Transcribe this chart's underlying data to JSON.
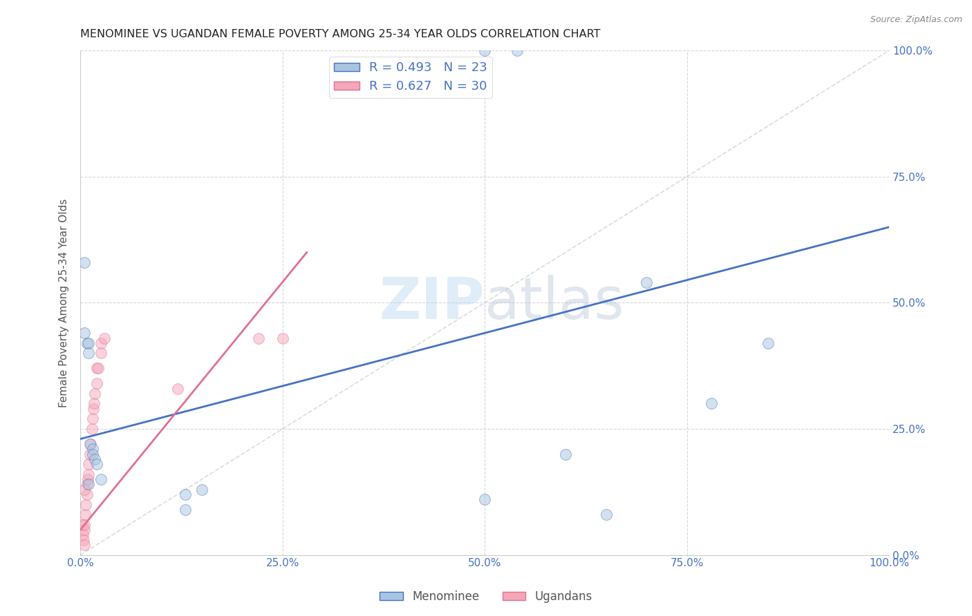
{
  "title": "MENOMINEE VS UGANDAN FEMALE POVERTY AMONG 25-34 YEAR OLDS CORRELATION CHART",
  "source": "Source: ZipAtlas.com",
  "ylabel": "Female Poverty Among 25-34 Year Olds",
  "xlim": [
    0.0,
    1.0
  ],
  "ylim": [
    0.0,
    1.0
  ],
  "xticks": [
    0.0,
    0.25,
    0.5,
    0.75,
    1.0
  ],
  "yticks": [
    0.0,
    0.25,
    0.5,
    0.75,
    1.0
  ],
  "xtick_labels": [
    "0.0%",
    "25.0%",
    "50.0%",
    "75.0%",
    "100.0%"
  ],
  "ytick_labels": [
    "0.0%",
    "25.0%",
    "50.0%",
    "75.0%",
    "100.0%"
  ],
  "menominee_color": "#a8c4e0",
  "ugandan_color": "#f4a7b9",
  "menominee_line_color": "#4472c4",
  "ugandan_line_color": "#e07090",
  "diagonal_color": "#cccccc",
  "watermark_zip": "ZIP",
  "watermark_atlas": "atlas",
  "legend_r_menominee": "R = 0.493",
  "legend_n_menominee": "N = 23",
  "legend_r_ugandan": "R = 0.627",
  "legend_n_ugandan": "N = 30",
  "menominee_x": [
    0.005,
    0.005,
    0.008,
    0.01,
    0.01,
    0.012,
    0.015,
    0.015,
    0.018,
    0.02,
    0.025,
    0.01,
    0.5,
    0.54,
    0.7,
    0.78,
    0.85,
    0.6,
    0.15,
    0.13,
    0.13,
    0.5,
    0.65
  ],
  "menominee_y": [
    0.58,
    0.44,
    0.42,
    0.42,
    0.4,
    0.22,
    0.21,
    0.2,
    0.19,
    0.18,
    0.15,
    0.14,
    1.0,
    1.0,
    0.54,
    0.3,
    0.42,
    0.2,
    0.13,
    0.12,
    0.09,
    0.11,
    0.08
  ],
  "ugandan_x": [
    0.002,
    0.003,
    0.004,
    0.005,
    0.005,
    0.006,
    0.007,
    0.008,
    0.008,
    0.009,
    0.01,
    0.01,
    0.012,
    0.013,
    0.014,
    0.015,
    0.016,
    0.017,
    0.018,
    0.02,
    0.02,
    0.022,
    0.025,
    0.025,
    0.03,
    0.12,
    0.22,
    0.25,
    0.005,
    0.005
  ],
  "ugandan_y": [
    0.06,
    0.04,
    0.03,
    0.02,
    0.05,
    0.08,
    0.1,
    0.12,
    0.14,
    0.15,
    0.16,
    0.18,
    0.2,
    0.22,
    0.25,
    0.27,
    0.29,
    0.3,
    0.32,
    0.34,
    0.37,
    0.37,
    0.4,
    0.42,
    0.43,
    0.33,
    0.43,
    0.43,
    0.13,
    0.06
  ],
  "menominee_line_x0": 0.0,
  "menominee_line_y0": 0.23,
  "menominee_line_x1": 1.0,
  "menominee_line_y1": 0.65,
  "ugandan_line_x0": 0.0,
  "ugandan_line_y0": 0.05,
  "ugandan_line_x1": 0.28,
  "ugandan_line_y1": 0.6,
  "scatter_size": 130,
  "scatter_alpha": 0.5,
  "grid_color": "#cccccc",
  "background_color": "#ffffff",
  "title_fontsize": 11.5,
  "axis_label_fontsize": 11,
  "tick_fontsize": 11,
  "legend_fontsize": 13
}
